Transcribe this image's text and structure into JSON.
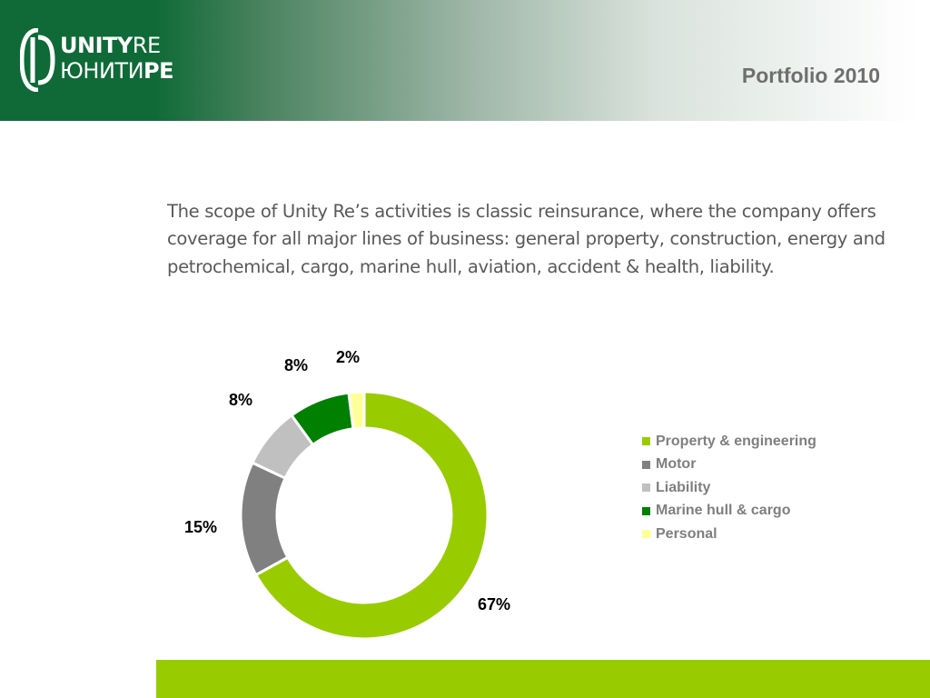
{
  "logo": {
    "line1_bold": "UNITY",
    "line1_thin": "RE",
    "line2_thin": "ЮНИТИ",
    "line2_bold": "РЕ"
  },
  "header": {
    "title": "Portfolio 2010"
  },
  "intro_text": "The scope of Unity Re’s activities is classic reinsurance, where the company offers coverage for all major lines of business: general property, construction, energy and petrochemical, cargo, marine hull, aviation, accident & health, liability.",
  "colors": {
    "brand_green": "#0f6a37",
    "accent_lime": "#99cc00"
  },
  "chart_data": {
    "type": "pie",
    "variant": "doughnut",
    "categories": [
      "Property & engineering",
      "Motor",
      "Liability",
      "Marine hull & cargo",
      "Personal"
    ],
    "values": [
      67,
      15,
      8,
      8,
      2
    ],
    "data_labels": [
      "67%",
      "15%",
      "8%",
      "8%",
      "2%"
    ],
    "colors": [
      "#99cc00",
      "#808080",
      "#c0c0c0",
      "#008000",
      "#ffff99"
    ],
    "legend_placement": "right"
  }
}
